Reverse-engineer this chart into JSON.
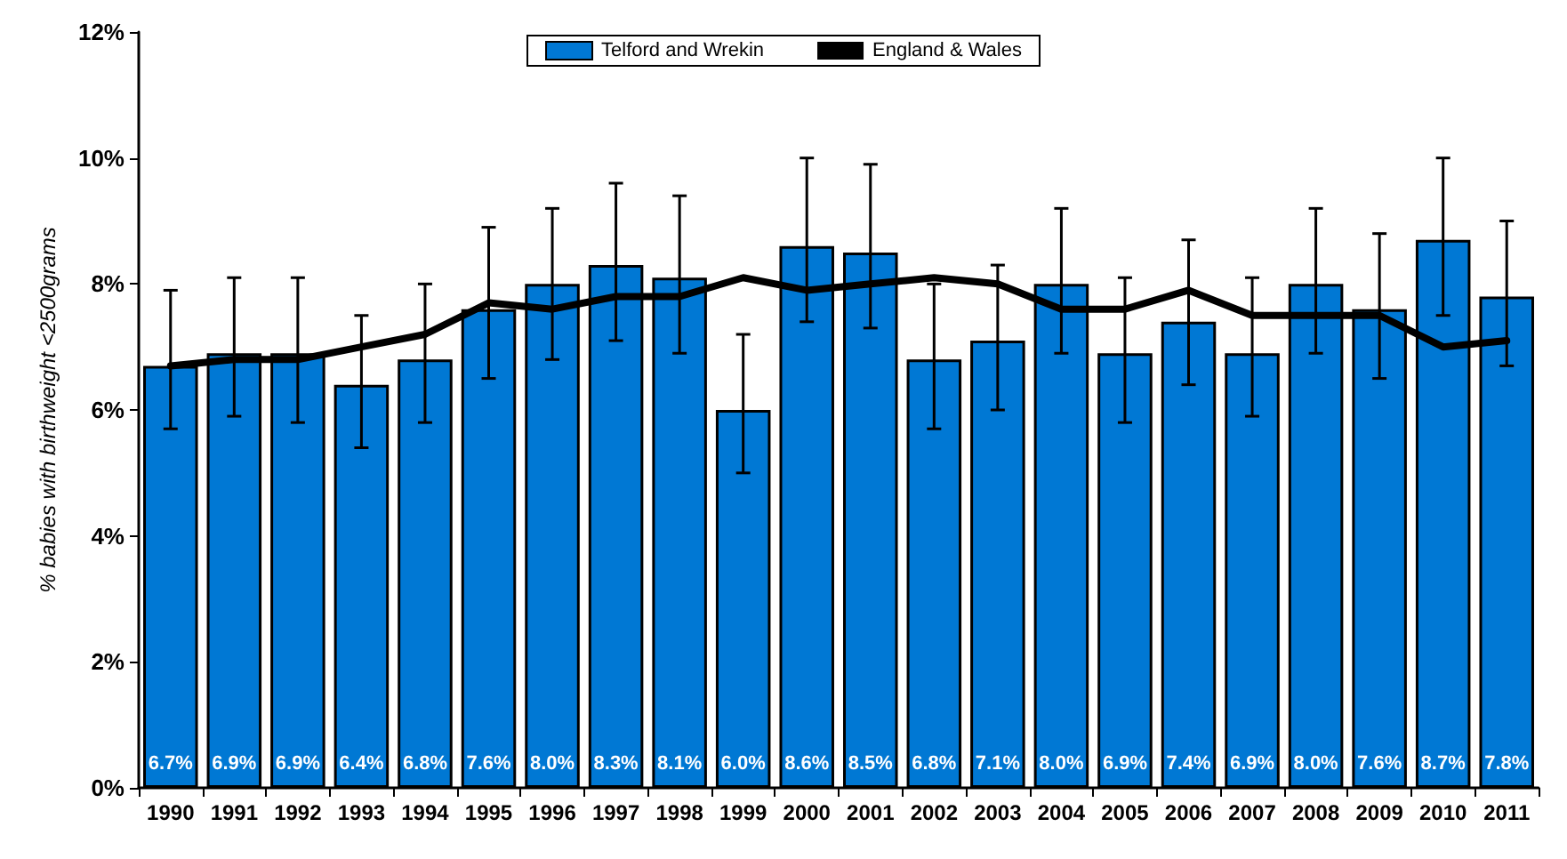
{
  "chart_data": {
    "type": "bar",
    "ylabel": "% babies with birthweight <2500grams",
    "categories": [
      "1990",
      "1991",
      "1992",
      "1993",
      "1994",
      "1995",
      "1996",
      "1997",
      "1998",
      "1999",
      "2000",
      "2001",
      "2002",
      "2003",
      "2004",
      "2005",
      "2006",
      "2007",
      "2008",
      "2009",
      "2010",
      "2011"
    ],
    "series": [
      {
        "name": "Telford and Wrekin",
        "color": "#0078d4",
        "values": [
          6.7,
          6.9,
          6.9,
          6.4,
          6.8,
          7.6,
          8.0,
          8.3,
          8.1,
          6.0,
          8.6,
          8.5,
          6.8,
          7.1,
          8.0,
          6.9,
          7.4,
          6.9,
          8.0,
          7.6,
          8.7,
          7.8
        ],
        "value_labels": [
          "6.7%",
          "6.9%",
          "6.9%",
          "6.4%",
          "6.8%",
          "7.6%",
          "8.0%",
          "8.3%",
          "8.1%",
          "6.0%",
          "8.6%",
          "8.5%",
          "6.8%",
          "7.1%",
          "8.0%",
          "6.9%",
          "7.4%",
          "6.9%",
          "8.0%",
          "7.6%",
          "8.7%",
          "7.8%"
        ],
        "errors": [
          [
            5.7,
            7.9
          ],
          [
            5.9,
            8.1
          ],
          [
            5.8,
            8.1
          ],
          [
            5.4,
            7.5
          ],
          [
            5.8,
            8.0
          ],
          [
            6.5,
            8.9
          ],
          [
            6.8,
            9.2
          ],
          [
            7.1,
            9.6
          ],
          [
            6.9,
            9.4
          ],
          [
            5.0,
            7.2
          ],
          [
            7.4,
            10.0
          ],
          [
            7.3,
            9.9
          ],
          [
            5.7,
            8.0
          ],
          [
            6.0,
            8.3
          ],
          [
            6.9,
            9.2
          ],
          [
            5.8,
            8.1
          ],
          [
            6.4,
            8.7
          ],
          [
            5.9,
            8.1
          ],
          [
            6.9,
            9.2
          ],
          [
            6.5,
            8.8
          ],
          [
            7.5,
            10.0
          ],
          [
            6.7,
            9.0
          ]
        ]
      },
      {
        "name": "England & Wales",
        "type": "line",
        "color": "#000000",
        "values": [
          6.7,
          6.8,
          6.8,
          7.0,
          7.2,
          7.7,
          7.6,
          7.8,
          7.8,
          8.1,
          7.9,
          8.0,
          8.1,
          8.0,
          7.6,
          7.6,
          7.9,
          7.5,
          7.5,
          7.5,
          7.0,
          7.1
        ]
      }
    ],
    "ylim": [
      0,
      12
    ],
    "yticks": [
      {
        "value": 0,
        "label": "0%"
      },
      {
        "value": 2,
        "label": "2%"
      },
      {
        "value": 4,
        "label": "4%"
      },
      {
        "value": 6,
        "label": "6%"
      },
      {
        "value": 8,
        "label": "8%"
      },
      {
        "value": 10,
        "label": "10%"
      },
      {
        "value": 12,
        "label": "12%"
      }
    ],
    "legend": "top",
    "grid": false,
    "marker": "none",
    "line_style": "solid"
  }
}
